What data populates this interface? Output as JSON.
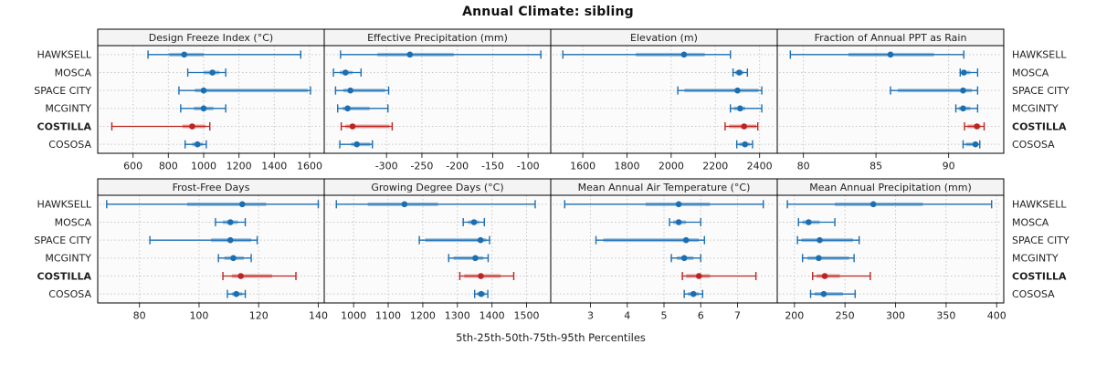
{
  "title": "Annual Climate: sibling",
  "caption": "5th-25th-50th-75th-95th Percentiles",
  "sites": [
    "HAWKSELL",
    "MOSCA",
    "SPACE CITY",
    "MCGINTY",
    "COSTILLA",
    "COSOSA"
  ],
  "highlight_site": "COSTILLA",
  "percentile_labels": [
    "5th",
    "25th",
    "50th",
    "75th",
    "95th"
  ],
  "colors": {
    "series": "#1b6eb1",
    "highlight": "#bd241f",
    "band_opacity": 0.42,
    "grid": "#c8c8c8",
    "panel_bg": "#fbfbfb",
    "header_bg": "#f4f4f4",
    "border": "#000000",
    "text": "#1f1f1f"
  },
  "chart_data": {
    "type": "percentile-interval dotplot (5-25-50-75-95)",
    "layout": {
      "rows": 2,
      "cols": 4
    },
    "panels": [
      {
        "title": "Design Freeze Index (°C)",
        "xlim": [
          400,
          1683
        ],
        "ticks": [
          600,
          800,
          1000,
          1200,
          1400,
          1600
        ],
        "series": [
          {
            "site": "HAWKSELL",
            "percentiles": [
              685,
              805,
              890,
              1000,
              1550
            ]
          },
          {
            "site": "MOSCA",
            "percentiles": [
              910,
              1000,
              1050,
              1090,
              1125
            ]
          },
          {
            "site": "SPACE CITY",
            "percentiles": [
              860,
              950,
              1000,
              1590,
              1605
            ]
          },
          {
            "site": "MCGINTY",
            "percentiles": [
              870,
              945,
              1000,
              1055,
              1125
            ]
          },
          {
            "site": "COSTILLA",
            "percentiles": [
              480,
              880,
              935,
              1010,
              1035
            ]
          },
          {
            "site": "COSOSA",
            "percentiles": [
              895,
              935,
              965,
              995,
              1015
            ]
          }
        ]
      },
      {
        "title": "Effective Precipitation (mm)",
        "xlim": [
          -388,
          -68
        ],
        "ticks": [
          -300,
          -250,
          -200,
          -150,
          -100
        ],
        "series": [
          {
            "site": "HAWKSELL",
            "percentiles": [
              -365,
              -313,
              -267,
              -205,
              -82
            ]
          },
          {
            "site": "MOSCA",
            "percentiles": [
              -375,
              -366,
              -358,
              -348,
              -336
            ]
          },
          {
            "site": "SPACE CITY",
            "percentiles": [
              -372,
              -361,
              -351,
              -302,
              -297
            ]
          },
          {
            "site": "MCGINTY",
            "percentiles": [
              -369,
              -362,
              -355,
              -324,
              -298
            ]
          },
          {
            "site": "COSTILLA",
            "percentiles": [
              -364,
              -358,
              -348,
              -296,
              -292
            ]
          },
          {
            "site": "COSOSA",
            "percentiles": [
              -366,
              -350,
              -342,
              -323,
              -320
            ]
          }
        ]
      },
      {
        "title": "Elevation (m)",
        "xlim": [
          1455,
          2480
        ],
        "ticks": [
          1600,
          1800,
          2000,
          2200,
          2400
        ],
        "series": [
          {
            "site": "HAWKSELL",
            "percentiles": [
              1510,
              1840,
              2058,
              2152,
              2268
            ]
          },
          {
            "site": "MOSCA",
            "percentiles": [
              2280,
              2290,
              2308,
              2327,
              2345
            ]
          },
          {
            "site": "SPACE CITY",
            "percentiles": [
              2030,
              2060,
              2300,
              2395,
              2410
            ]
          },
          {
            "site": "MCGINTY",
            "percentiles": [
              2268,
              2284,
              2312,
              2335,
              2410
            ]
          },
          {
            "site": "COSTILLA",
            "percentiles": [
              2244,
              2262,
              2330,
              2385,
              2392
            ]
          },
          {
            "site": "COSOSA",
            "percentiles": [
              2297,
              2308,
              2334,
              2357,
              2368
            ]
          }
        ]
      },
      {
        "title": "Fraction of Annual PPT as Rain",
        "xlim": [
          78.2,
          93.8
        ],
        "ticks": [
          80,
          85,
          90
        ],
        "series": [
          {
            "site": "HAWKSELL",
            "percentiles": [
              79.1,
              83.1,
              86.0,
              89.0,
              91.05
            ]
          },
          {
            "site": "MOSCA",
            "percentiles": [
              90.8,
              90.9,
              91.05,
              91.5,
              92.0
            ]
          },
          {
            "site": "SPACE CITY",
            "percentiles": [
              86.0,
              86.5,
              91.0,
              91.6,
              92.0
            ]
          },
          {
            "site": "MCGINTY",
            "percentiles": [
              90.5,
              90.7,
              91.0,
              91.5,
              92.0
            ]
          },
          {
            "site": "COSTILLA",
            "percentiles": [
              91.1,
              91.3,
              91.95,
              92.2,
              92.45
            ]
          },
          {
            "site": "COSOSA",
            "percentiles": [
              91.0,
              91.2,
              91.85,
              92.05,
              92.15
            ]
          }
        ]
      },
      {
        "title": "Frost-Free Days",
        "xlim": [
          66,
          142
        ],
        "ticks": [
          80,
          100,
          120,
          140
        ],
        "series": [
          {
            "site": "HAWKSELL",
            "percentiles": [
              69,
              96,
              114.5,
              122.5,
              140
            ]
          },
          {
            "site": "MOSCA",
            "percentiles": [
              105.5,
              108,
              110.5,
              113,
              115.5
            ]
          },
          {
            "site": "SPACE CITY",
            "percentiles": [
              83.5,
              104,
              110.5,
              117.5,
              119.5
            ]
          },
          {
            "site": "MCGINTY",
            "percentiles": [
              106.5,
              108.5,
              111.5,
              115,
              117.5
            ]
          },
          {
            "site": "COSTILLA",
            "percentiles": [
              108,
              111,
              114,
              124.5,
              132.5
            ]
          },
          {
            "site": "COSOSA",
            "percentiles": [
              109.5,
              111,
              112.5,
              114.5,
              115.5
            ]
          }
        ]
      },
      {
        "title": "Growing Degree Days (°C)",
        "xlim": [
          915,
          1570
        ],
        "ticks": [
          1000,
          1100,
          1200,
          1300,
          1400,
          1500
        ],
        "series": [
          {
            "site": "HAWKSELL",
            "percentiles": [
              950,
              1041,
              1147,
              1244,
              1525
            ]
          },
          {
            "site": "MOSCA",
            "percentiles": [
              1317,
              1331,
              1348,
              1363,
              1378
            ]
          },
          {
            "site": "SPACE CITY",
            "percentiles": [
              1190,
              1207,
              1367,
              1383,
              1393
            ]
          },
          {
            "site": "MCGINTY",
            "percentiles": [
              1275,
              1289,
              1352,
              1375,
              1389
            ]
          },
          {
            "site": "COSTILLA",
            "percentiles": [
              1307,
              1320,
              1368,
              1425,
              1463
            ]
          },
          {
            "site": "COSOSA",
            "percentiles": [
              1350,
              1357,
              1369,
              1381,
              1388
            ]
          }
        ]
      },
      {
        "title": "Mean Annual Air Temperature (°C)",
        "xlim": [
          1.92,
          8.08
        ],
        "ticks": [
          3,
          4,
          5,
          6,
          7
        ],
        "series": [
          {
            "site": "HAWKSELL",
            "percentiles": [
              2.3,
              4.5,
              5.4,
              6.25,
              7.7
            ]
          },
          {
            "site": "MOSCA",
            "percentiles": [
              5.15,
              5.25,
              5.4,
              5.6,
              6.0
            ]
          },
          {
            "site": "SPACE CITY",
            "percentiles": [
              3.15,
              3.35,
              5.6,
              5.95,
              6.1
            ]
          },
          {
            "site": "MCGINTY",
            "percentiles": [
              5.2,
              5.35,
              5.55,
              5.8,
              6.0
            ]
          },
          {
            "site": "COSTILLA",
            "percentiles": [
              5.5,
              5.6,
              5.95,
              6.25,
              7.5
            ]
          },
          {
            "site": "COSOSA",
            "percentiles": [
              5.55,
              5.65,
              5.8,
              5.95,
              6.05
            ]
          }
        ]
      },
      {
        "title": "Mean Annual Precipitation (mm)",
        "xlim": [
          183,
          407
        ],
        "ticks": [
          200,
          250,
          300,
          350,
          400
        ],
        "series": [
          {
            "site": "HAWKSELL",
            "percentiles": [
              193,
              240,
              278,
              327,
              395
            ]
          },
          {
            "site": "MOSCA",
            "percentiles": [
              204,
              208,
              214,
              225,
              240
            ]
          },
          {
            "site": "SPACE CITY",
            "percentiles": [
              203,
              207,
              225,
              258,
              264
            ]
          },
          {
            "site": "MCGINTY",
            "percentiles": [
              208,
              213,
              224,
              254,
              259
            ]
          },
          {
            "site": "COSTILLA",
            "percentiles": [
              218,
              222,
              230,
              245,
              275
            ]
          },
          {
            "site": "COSOSA",
            "percentiles": [
              216,
              220,
              229,
              248,
              260
            ]
          }
        ]
      }
    ]
  }
}
